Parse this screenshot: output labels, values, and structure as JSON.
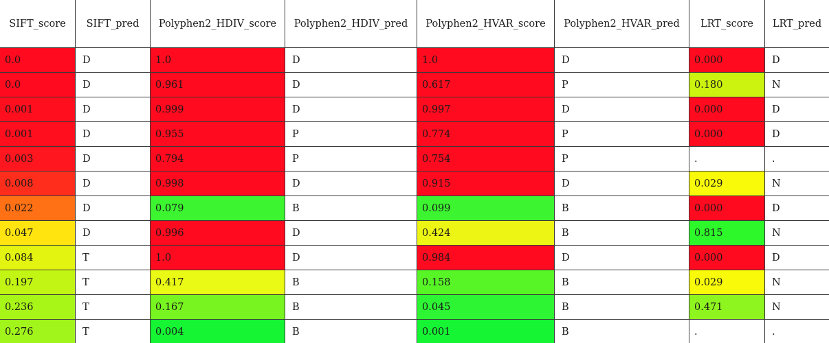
{
  "columns": [
    {
      "key": "sift_score",
      "label": "SIFT_score",
      "colored": true
    },
    {
      "key": "sift_pred",
      "label": "SIFT_pred",
      "colored": false
    },
    {
      "key": "hdiv_score",
      "label": "Polyphen2_HDIV_score",
      "colored": true
    },
    {
      "key": "hdiv_pred",
      "label": "Polyphen2_HDIV_pred",
      "colored": false
    },
    {
      "key": "hvar_score",
      "label": "Polyphen2_HVAR_score",
      "colored": true
    },
    {
      "key": "hvar_pred",
      "label": "Polyphen2_HVAR_pred",
      "colored": false
    },
    {
      "key": "lrt_score",
      "label": "LRT_score",
      "colored": true
    },
    {
      "key": "lrt_pred",
      "label": "LRT_pred",
      "colored": false
    }
  ],
  "rows": [
    {
      "cells": [
        "0.0",
        "D",
        "1.0",
        "D",
        "1.0",
        "D",
        "0.000",
        "D"
      ],
      "colors": [
        "#ff0a1e",
        null,
        "#ff0a1e",
        null,
        "#ff0a1e",
        null,
        "#ff0a1e",
        null
      ]
    },
    {
      "cells": [
        "0.0",
        "D",
        "0.961",
        "D",
        "0.617",
        "P",
        "0.180",
        "N"
      ],
      "colors": [
        "#ff0a1e",
        null,
        "#ff0a1e",
        null,
        "#ff0a1e",
        null,
        "#ccf20f",
        null
      ]
    },
    {
      "cells": [
        "0.001",
        "D",
        "0.999",
        "D",
        "0.997",
        "D",
        "0.000",
        "D"
      ],
      "colors": [
        "#ff0e1e",
        null,
        "#ff0a1e",
        null,
        "#ff0a1e",
        null,
        "#ff0a1e",
        null
      ]
    },
    {
      "cells": [
        "0.001",
        "D",
        "0.955",
        "P",
        "0.774",
        "P",
        "0.000",
        "D"
      ],
      "colors": [
        "#ff0e1e",
        null,
        "#ff0a1e",
        null,
        "#ff0a1e",
        null,
        "#ff0a1e",
        null
      ]
    },
    {
      "cells": [
        "0.003",
        "D",
        "0.794",
        "P",
        "0.754",
        "P",
        ".",
        "."
      ],
      "colors": [
        "#ff161e",
        null,
        "#ff0a1e",
        null,
        "#ff0a1e",
        null,
        null,
        null
      ]
    },
    {
      "cells": [
        "0.008",
        "D",
        "0.998",
        "D",
        "0.915",
        "D",
        "0.029",
        "N"
      ],
      "colors": [
        "#ff2d1c",
        null,
        "#ff0a1e",
        null,
        "#ff0a1e",
        null,
        "#f8fa0a",
        null
      ]
    },
    {
      "cells": [
        "0.022",
        "D",
        "0.079",
        "B",
        "0.099",
        "B",
        "0.000",
        "D"
      ],
      "colors": [
        "#ff7114",
        null,
        "#3cf530",
        null,
        "#3cf530",
        null,
        "#ff0a1e",
        null
      ]
    },
    {
      "cells": [
        "0.047",
        "D",
        "0.996",
        "D",
        "0.424",
        "B",
        "0.815",
        "N"
      ],
      "colors": [
        "#ffe40f",
        null,
        "#ff0a1e",
        null,
        "#ecf514",
        null,
        "#2df82a",
        null
      ]
    },
    {
      "cells": [
        "0.084",
        "T",
        "1.0",
        "D",
        "0.984",
        "D",
        "0.000",
        "D"
      ],
      "colors": [
        "#e2f40f",
        null,
        "#ff0a1e",
        null,
        "#ff0a1e",
        null,
        "#ff0a1e",
        null
      ]
    },
    {
      "cells": [
        "0.197",
        "T",
        "0.417",
        "B",
        "0.158",
        "B",
        "0.029",
        "N"
      ],
      "colors": [
        "#c2f514",
        null,
        "#eafa14",
        null,
        "#57f526",
        null,
        "#f8fa0a",
        null
      ]
    },
    {
      "cells": [
        "0.236",
        "T",
        "0.167",
        "B",
        "0.045",
        "B",
        "0.471",
        "N"
      ],
      "colors": [
        "#a8f518",
        null,
        "#78f520",
        null,
        "#2ef533",
        null,
        "#8ff51e",
        null
      ]
    },
    {
      "cells": [
        "0.276",
        "T",
        "0.004",
        "B",
        "0.001",
        "B",
        ".",
        "."
      ],
      "colors": [
        "#a2f51b",
        null,
        "#16f534",
        null,
        "#16f534",
        null,
        null,
        null
      ]
    }
  ]
}
